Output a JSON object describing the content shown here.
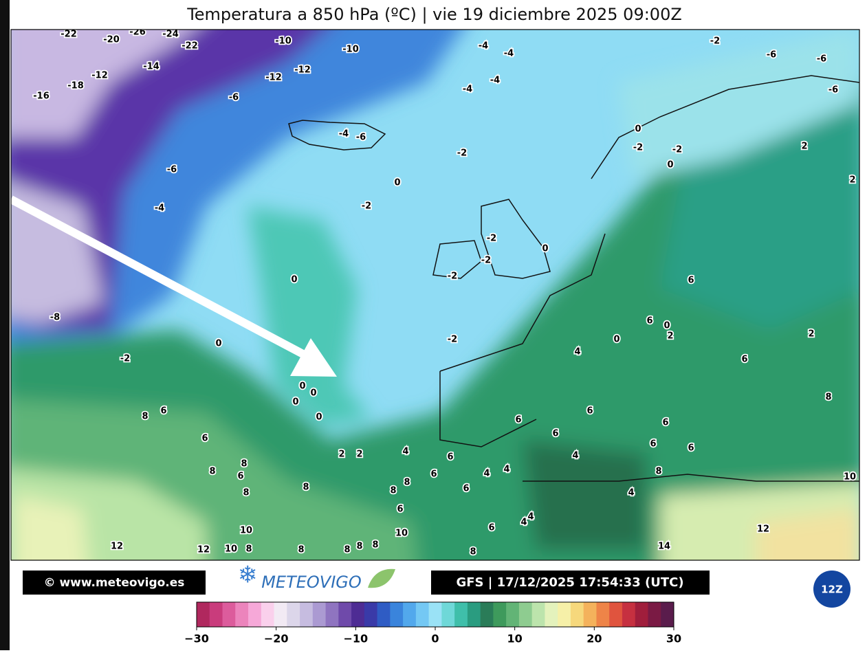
{
  "title": "Temperatura a 850 hPa (ºC) | vie 19 diciembre 2025 09:00Z",
  "map": {
    "contour_labels": [
      -22,
      -20,
      -26,
      -24,
      -22,
      -10,
      -10,
      -14,
      -12,
      -18,
      -16,
      -12,
      -12,
      -6,
      -4,
      -4,
      -4,
      -4,
      -2,
      -6,
      -6,
      -6,
      -4,
      -6,
      -6,
      -4,
      -2,
      0,
      -2,
      0,
      -2,
      -2,
      0,
      2,
      2,
      -2,
      -2,
      -2,
      0,
      0,
      -8,
      0,
      -2,
      -2,
      6,
      6,
      0,
      2,
      0,
      4,
      2,
      6,
      8,
      6,
      0,
      0,
      0,
      0,
      8,
      6,
      6,
      6,
      6,
      6,
      2,
      2,
      4,
      6,
      4,
      6,
      6,
      8,
      8,
      6,
      8,
      8,
      8,
      8,
      6,
      4,
      4,
      6,
      8,
      10,
      6,
      4,
      4,
      4,
      6,
      10,
      10,
      12,
      12,
      8,
      10,
      12,
      8,
      8,
      8,
      8,
      8,
      14
    ]
  },
  "footer": {
    "website": "© www.meteovigo.es",
    "logo": "METEOVIGO",
    "run_info": "GFS | 17/12/2025 17:54:33 (UTC)",
    "cycle": "12Z"
  },
  "colorbar": {
    "range": [
      -30,
      30
    ],
    "ticks": [
      {
        "value": -30,
        "label": "−30"
      },
      {
        "value": -20,
        "label": "−20"
      },
      {
        "value": -10,
        "label": "−10"
      },
      0,
      10,
      20,
      30
    ],
    "colors": [
      "#b0285e",
      "#c93c7c",
      "#dc5c9c",
      "#ec84bc",
      "#f6a8d8",
      "#fad0ec",
      "#f2eaf4",
      "#dcd6ea",
      "#c6bce0",
      "#ab9ad2",
      "#8f74c0",
      "#6f4aaa",
      "#4e2c94",
      "#3a3aa8",
      "#2f5cc4",
      "#3a84dc",
      "#52a8ec",
      "#74c8f4",
      "#9ae2f6",
      "#6fd8d8",
      "#3fbfaa",
      "#2a9c80",
      "#2a7c58",
      "#3e9a5c",
      "#62b476",
      "#8ecc90",
      "#bce4ac",
      "#e4f2bc",
      "#f6f0a8",
      "#f6d87c",
      "#f4b25c",
      "#ee8448",
      "#e0543e",
      "#c63040",
      "#a01e3c",
      "#7a1a44",
      "#5a1c4c"
    ]
  }
}
